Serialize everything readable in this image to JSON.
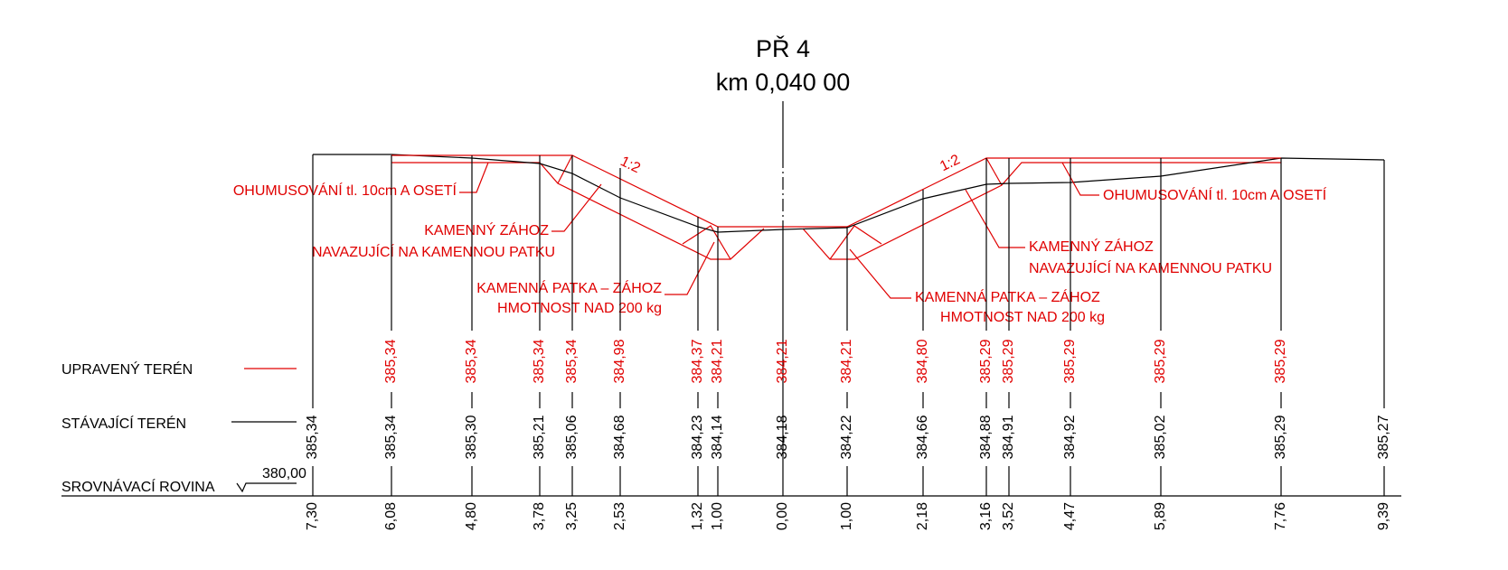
{
  "title": {
    "name": "PŘ 4",
    "km": "km 0,040 00"
  },
  "annotations": {
    "left": {
      "topsoil": "OHUMUSOVÁNÍ tl. 10cm A OSETÍ",
      "stone_fill": [
        "KAMENNÝ ZÁHOZ",
        "NAVAZUJÍCÍ NA KAMENNOU PATKU"
      ],
      "stone_toe": [
        "KAMENNÁ PATKA – ZÁHOZ",
        "HMOTNOST NAD 200 kg"
      ],
      "slope": "1:2"
    },
    "right": {
      "topsoil": "OHUMUSOVÁNÍ tl. 10cm A OSETÍ",
      "stone_fill": [
        "KAMENNÝ ZÁHOZ",
        "NAVAZUJÍCÍ NA KAMENNOU PATKU"
      ],
      "stone_toe": [
        "KAMENNÁ PATKA – ZÁHOZ",
        "HMOTNOST NAD 200 kg"
      ],
      "slope": "1:2"
    }
  },
  "legend": {
    "designed": "UPRAVENÝ TERÉN",
    "existing": "STÁVAJÍCÍ TERÉN",
    "datum": "SROVNÁVACÍ ROVINA",
    "datum_level": "380,00"
  },
  "stations": [
    {
      "offset": "7,30",
      "existing": "385,34"
    },
    {
      "offset": "6,08",
      "existing": "385,34",
      "designed": "385,34"
    },
    {
      "offset": "4,80",
      "existing": "385,30",
      "designed": "385,34"
    },
    {
      "offset": "3,78",
      "existing": "385,21",
      "designed": "385,34"
    },
    {
      "offset": "3,25",
      "existing": "385,06",
      "designed": "385,34"
    },
    {
      "offset": "2,53",
      "existing": "384,68",
      "designed": "384,98"
    },
    {
      "offset": "1,32",
      "existing": "384,23",
      "designed": "384,37"
    },
    {
      "offset": "1,00",
      "existing": "384,14",
      "designed": "384,21"
    },
    {
      "offset": "0,00",
      "existing": "384,18",
      "designed": "384,21"
    },
    {
      "offset": "1,00",
      "existing": "384,22",
      "designed": "384,21"
    },
    {
      "offset": "2,18",
      "existing": "384,66",
      "designed": "384,80"
    },
    {
      "offset": "3,16",
      "existing": "384,88",
      "designed": "385,29"
    },
    {
      "offset": "3,52",
      "existing": "384,91",
      "designed": "385,29"
    },
    {
      "offset": "4,47",
      "existing": "384,92",
      "designed": "385,29"
    },
    {
      "offset": "5,89",
      "existing": "385,02",
      "designed": "385,29"
    },
    {
      "offset": "7,76",
      "existing": "385,29",
      "designed": "385,29"
    },
    {
      "offset": "9,39",
      "existing": "385,27"
    }
  ]
}
